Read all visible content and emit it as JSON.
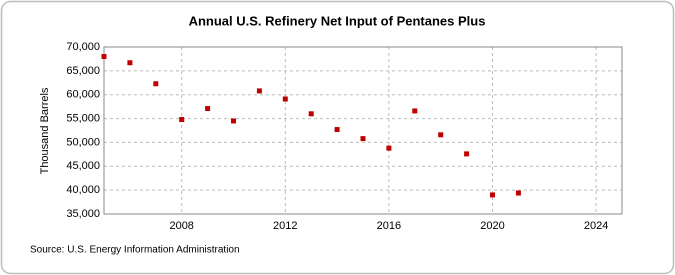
{
  "chart_data": {
    "type": "scatter",
    "title": "Annual U.S. Refinery Net Input of Pentanes Plus",
    "y_label": "Thousand Barrels",
    "source": "Source: U.S. Energy Information Administration",
    "x": [
      2005,
      2006,
      2007,
      2008,
      2009,
      2010,
      2011,
      2012,
      2013,
      2014,
      2015,
      2016,
      2017,
      2018,
      2019,
      2020,
      2021
    ],
    "values": [
      68000,
      66700,
      62300,
      54800,
      57100,
      54500,
      60800,
      59100,
      56000,
      52700,
      50800,
      48800,
      56600,
      51600,
      47600,
      39000,
      39400
    ],
    "color": "#c00000",
    "xlim": [
      2005,
      2025
    ],
    "xticks": [
      2008,
      2012,
      2016,
      2020,
      2024
    ],
    "ylim": [
      35000,
      70000
    ],
    "yticks": [
      {
        "value": 35000,
        "label": "35,000"
      },
      {
        "value": 40000,
        "label": "40,000"
      },
      {
        "value": 45000,
        "label": "45,000"
      },
      {
        "value": 50000,
        "label": "50,000"
      },
      {
        "value": 55000,
        "label": "55,000"
      },
      {
        "value": 60000,
        "label": "60,000"
      },
      {
        "value": 65000,
        "label": "65,000"
      },
      {
        "value": 70000,
        "label": "70,000"
      }
    ],
    "grid": true
  }
}
